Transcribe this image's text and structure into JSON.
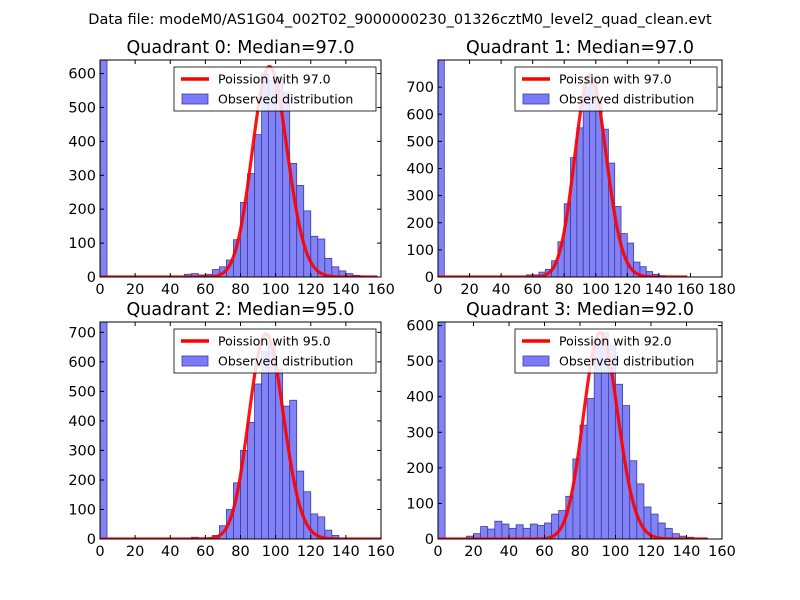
{
  "suptitle": "Data file: modeM0/AS1G04_002T02_9000000230_01326cztM0_level2_quad_clean.evt",
  "colors": {
    "bar_fill": "#7b7bf7",
    "bar_edge": "#3d3d9e",
    "curve": "#ff0000",
    "frame": "#000000"
  },
  "chart_data": [
    {
      "type": "bar",
      "title": "Quadrant 0: Median=97.0",
      "median": 97.0,
      "xlim": [
        0,
        160
      ],
      "ylim": [
        0,
        640
      ],
      "xticks": [
        0,
        20,
        40,
        60,
        80,
        100,
        120,
        140,
        160
      ],
      "yticks": [
        0,
        100,
        200,
        300,
        400,
        500,
        600
      ],
      "bin_width": 4,
      "bars": [
        {
          "x": 0,
          "h": 640
        },
        {
          "x": 48,
          "h": 8
        },
        {
          "x": 52,
          "h": 10
        },
        {
          "x": 56,
          "h": 6
        },
        {
          "x": 60,
          "h": 8
        },
        {
          "x": 64,
          "h": 22
        },
        {
          "x": 68,
          "h": 30
        },
        {
          "x": 72,
          "h": 50
        },
        {
          "x": 76,
          "h": 110
        },
        {
          "x": 80,
          "h": 220
        },
        {
          "x": 84,
          "h": 305
        },
        {
          "x": 88,
          "h": 420
        },
        {
          "x": 92,
          "h": 600
        },
        {
          "x": 96,
          "h": 580
        },
        {
          "x": 100,
          "h": 590
        },
        {
          "x": 104,
          "h": 545
        },
        {
          "x": 108,
          "h": 335
        },
        {
          "x": 112,
          "h": 270
        },
        {
          "x": 116,
          "h": 195
        },
        {
          "x": 120,
          "h": 120
        },
        {
          "x": 124,
          "h": 112
        },
        {
          "x": 128,
          "h": 55
        },
        {
          "x": 132,
          "h": 30
        },
        {
          "x": 136,
          "h": 18
        },
        {
          "x": 140,
          "h": 10
        },
        {
          "x": 144,
          "h": 5
        },
        {
          "x": 148,
          "h": 3
        }
      ],
      "poisson_x_range": [
        0,
        158
      ],
      "poisson_peak": 620,
      "legend": {
        "line": "Poission with 97.0",
        "bars": "Observed distribution"
      }
    },
    {
      "type": "bar",
      "title": "Quadrant 1: Median=97.0",
      "median": 97.0,
      "xlim": [
        0,
        180
      ],
      "ylim": [
        0,
        800
      ],
      "xticks": [
        0,
        20,
        40,
        60,
        80,
        100,
        120,
        140,
        160,
        180
      ],
      "yticks": [
        0,
        100,
        200,
        300,
        400,
        500,
        600,
        700
      ],
      "bin_width": 4,
      "bars": [
        {
          "x": 0,
          "h": 800
        },
        {
          "x": 56,
          "h": 8
        },
        {
          "x": 60,
          "h": 8
        },
        {
          "x": 64,
          "h": 18
        },
        {
          "x": 68,
          "h": 28
        },
        {
          "x": 72,
          "h": 60
        },
        {
          "x": 76,
          "h": 130
        },
        {
          "x": 80,
          "h": 270
        },
        {
          "x": 84,
          "h": 440
        },
        {
          "x": 88,
          "h": 550
        },
        {
          "x": 92,
          "h": 700
        },
        {
          "x": 96,
          "h": 720
        },
        {
          "x": 100,
          "h": 640
        },
        {
          "x": 104,
          "h": 545
        },
        {
          "x": 108,
          "h": 420
        },
        {
          "x": 112,
          "h": 260
        },
        {
          "x": 116,
          "h": 160
        },
        {
          "x": 120,
          "h": 125
        },
        {
          "x": 124,
          "h": 55
        },
        {
          "x": 128,
          "h": 38
        },
        {
          "x": 132,
          "h": 20
        },
        {
          "x": 136,
          "h": 10
        },
        {
          "x": 140,
          "h": 5
        }
      ],
      "poisson_x_range": [
        0,
        158
      ],
      "poisson_peak": 745,
      "legend": {
        "line": "Poission with 97.0",
        "bars": "Observed distribution"
      }
    },
    {
      "type": "bar",
      "title": "Quadrant 2: Median=95.0",
      "median": 95.0,
      "xlim": [
        0,
        160
      ],
      "ylim": [
        0,
        735
      ],
      "xticks": [
        0,
        20,
        40,
        60,
        80,
        100,
        120,
        140,
        160
      ],
      "yticks": [
        0,
        100,
        200,
        300,
        400,
        500,
        600,
        700
      ],
      "bin_width": 4,
      "bars": [
        {
          "x": 0,
          "h": 735
        },
        {
          "x": 52,
          "h": 6
        },
        {
          "x": 56,
          "h": 4
        },
        {
          "x": 64,
          "h": 12
        },
        {
          "x": 68,
          "h": 45
        },
        {
          "x": 72,
          "h": 100
        },
        {
          "x": 76,
          "h": 190
        },
        {
          "x": 80,
          "h": 300
        },
        {
          "x": 84,
          "h": 395
        },
        {
          "x": 88,
          "h": 525
        },
        {
          "x": 92,
          "h": 635
        },
        {
          "x": 96,
          "h": 665
        },
        {
          "x": 100,
          "h": 575
        },
        {
          "x": 104,
          "h": 450
        },
        {
          "x": 108,
          "h": 470
        },
        {
          "x": 112,
          "h": 230
        },
        {
          "x": 116,
          "h": 160
        },
        {
          "x": 120,
          "h": 85
        },
        {
          "x": 124,
          "h": 75
        },
        {
          "x": 128,
          "h": 30
        },
        {
          "x": 132,
          "h": 12
        }
      ],
      "poisson_x_range": [
        0,
        160
      ],
      "poisson_peak": 695,
      "legend": {
        "line": "Poission with 95.0",
        "bars": "Observed distribution"
      }
    },
    {
      "type": "bar",
      "title": "Quadrant 3: Median=92.0",
      "median": 92.0,
      "xlim": [
        0,
        160
      ],
      "ylim": [
        0,
        610
      ],
      "xticks": [
        0,
        20,
        40,
        60,
        80,
        100,
        120,
        140,
        160
      ],
      "yticks": [
        0,
        100,
        200,
        300,
        400,
        500,
        600
      ],
      "bin_width": 4,
      "bars": [
        {
          "x": 0,
          "h": 610
        },
        {
          "x": 16,
          "h": 8
        },
        {
          "x": 20,
          "h": 15
        },
        {
          "x": 24,
          "h": 35
        },
        {
          "x": 28,
          "h": 28
        },
        {
          "x": 32,
          "h": 50
        },
        {
          "x": 36,
          "h": 42
        },
        {
          "x": 40,
          "h": 30
        },
        {
          "x": 44,
          "h": 40
        },
        {
          "x": 48,
          "h": 30
        },
        {
          "x": 52,
          "h": 42
        },
        {
          "x": 56,
          "h": 38
        },
        {
          "x": 60,
          "h": 45
        },
        {
          "x": 64,
          "h": 70
        },
        {
          "x": 68,
          "h": 80
        },
        {
          "x": 72,
          "h": 120
        },
        {
          "x": 76,
          "h": 225
        },
        {
          "x": 80,
          "h": 320
        },
        {
          "x": 84,
          "h": 395
        },
        {
          "x": 88,
          "h": 560
        },
        {
          "x": 92,
          "h": 580
        },
        {
          "x": 96,
          "h": 545
        },
        {
          "x": 100,
          "h": 435
        },
        {
          "x": 104,
          "h": 375
        },
        {
          "x": 108,
          "h": 220
        },
        {
          "x": 112,
          "h": 155
        },
        {
          "x": 116,
          "h": 90
        },
        {
          "x": 120,
          "h": 70
        },
        {
          "x": 124,
          "h": 45
        },
        {
          "x": 128,
          "h": 30
        },
        {
          "x": 132,
          "h": 15
        },
        {
          "x": 136,
          "h": 8
        },
        {
          "x": 140,
          "h": 5
        }
      ],
      "poisson_x_range": [
        0,
        152
      ],
      "poisson_peak": 580,
      "legend": {
        "line": "Poission with 92.0",
        "bars": "Observed distribution"
      }
    }
  ]
}
